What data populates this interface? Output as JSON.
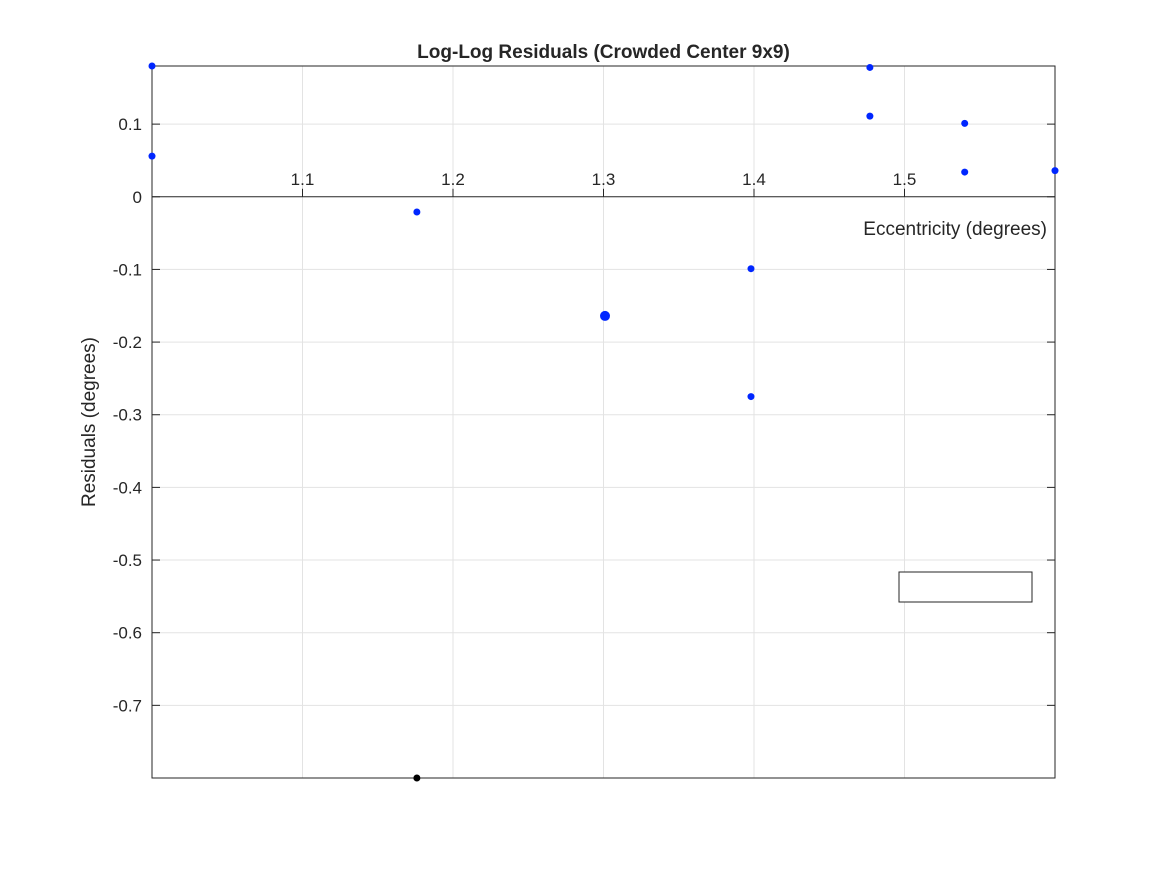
{
  "chart_data": {
    "type": "scatter",
    "title": "Log-Log Residuals (Crowded Center 9x9)",
    "xlabel": "Eccentricity (degrees)",
    "ylabel": "Residuals (degrees)",
    "xlim": [
      1.0,
      1.6
    ],
    "ylim": [
      -0.8,
      0.18
    ],
    "xticks": [
      1.1,
      1.2,
      1.3,
      1.4,
      1.5
    ],
    "xtick_labels": [
      "1.1",
      "1.2",
      "1.3",
      "1.4",
      "1.5"
    ],
    "yticks": [
      0.1,
      0,
      -0.1,
      -0.2,
      -0.3,
      -0.4,
      -0.5,
      -0.6,
      -0.7
    ],
    "ytick_labels": [
      "0.1",
      "0",
      "-0.1",
      "-0.2",
      "-0.3",
      "-0.4",
      "-0.5",
      "-0.6",
      "-0.7"
    ],
    "grid": true,
    "x_axis_location": "origin",
    "legend": "empty box, lower-right",
    "series": [
      {
        "color": "#0026ff",
        "points": [
          {
            "x": 1.0,
            "y": 0.18
          },
          {
            "x": 1.0,
            "y": 0.056
          },
          {
            "x": 1.176,
            "y": -0.021
          },
          {
            "x": 1.301,
            "y": -0.164,
            "size": "large"
          },
          {
            "x": 1.398,
            "y": -0.099
          },
          {
            "x": 1.398,
            "y": -0.275
          },
          {
            "x": 1.477,
            "y": 0.178
          },
          {
            "x": 1.477,
            "y": 0.111
          },
          {
            "x": 1.54,
            "y": 0.101
          },
          {
            "x": 1.54,
            "y": 0.034
          },
          {
            "x": 1.6,
            "y": 0.036
          }
        ]
      },
      {
        "color": "#000000",
        "points": [
          {
            "x": 1.176,
            "y": -0.8
          }
        ]
      }
    ]
  }
}
